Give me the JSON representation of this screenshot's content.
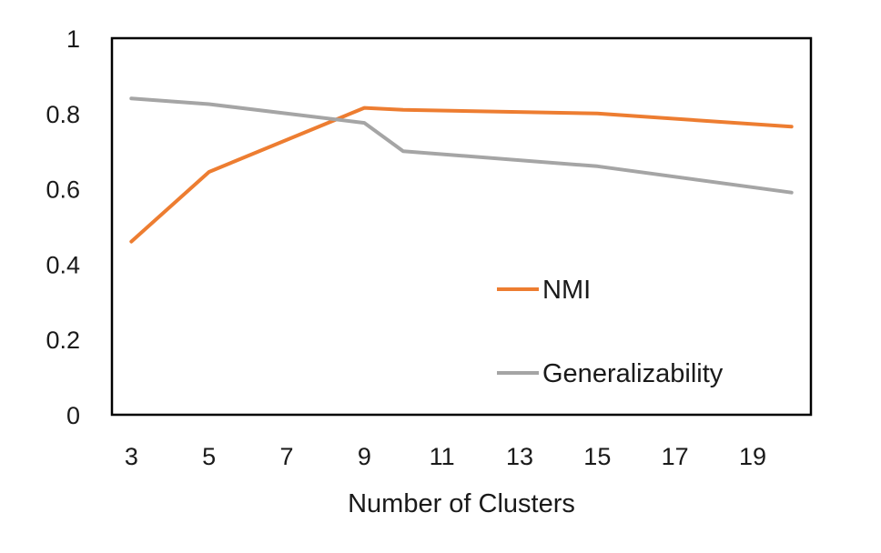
{
  "chart_data": {
    "type": "line",
    "title": "",
    "xlabel": "Number of Clusters",
    "ylabel": "",
    "x_ticks": [
      3,
      5,
      7,
      9,
      11,
      13,
      15,
      17,
      19
    ],
    "y_ticks": [
      0,
      0.2,
      0.4,
      0.6,
      0.8,
      1
    ],
    "y_tick_labels": [
      "0",
      "0.2",
      "0.4",
      "0.6",
      "0.8",
      "1"
    ],
    "xlim": [
      2.5,
      20.5
    ],
    "ylim": [
      0,
      1
    ],
    "grid": false,
    "legend_position": "bottom-right inside",
    "series": [
      {
        "name": "NMI",
        "color": "#ED7D31",
        "points": [
          [
            3,
            0.46
          ],
          [
            5,
            0.645
          ],
          [
            9,
            0.815
          ],
          [
            10,
            0.81
          ],
          [
            15,
            0.8
          ],
          [
            20,
            0.765
          ]
        ]
      },
      {
        "name": "Generalizability",
        "color": "#A5A5A5",
        "points": [
          [
            3,
            0.84
          ],
          [
            5,
            0.825
          ],
          [
            9,
            0.775
          ],
          [
            10,
            0.7
          ],
          [
            15,
            0.66
          ],
          [
            20,
            0.59
          ]
        ]
      }
    ]
  }
}
